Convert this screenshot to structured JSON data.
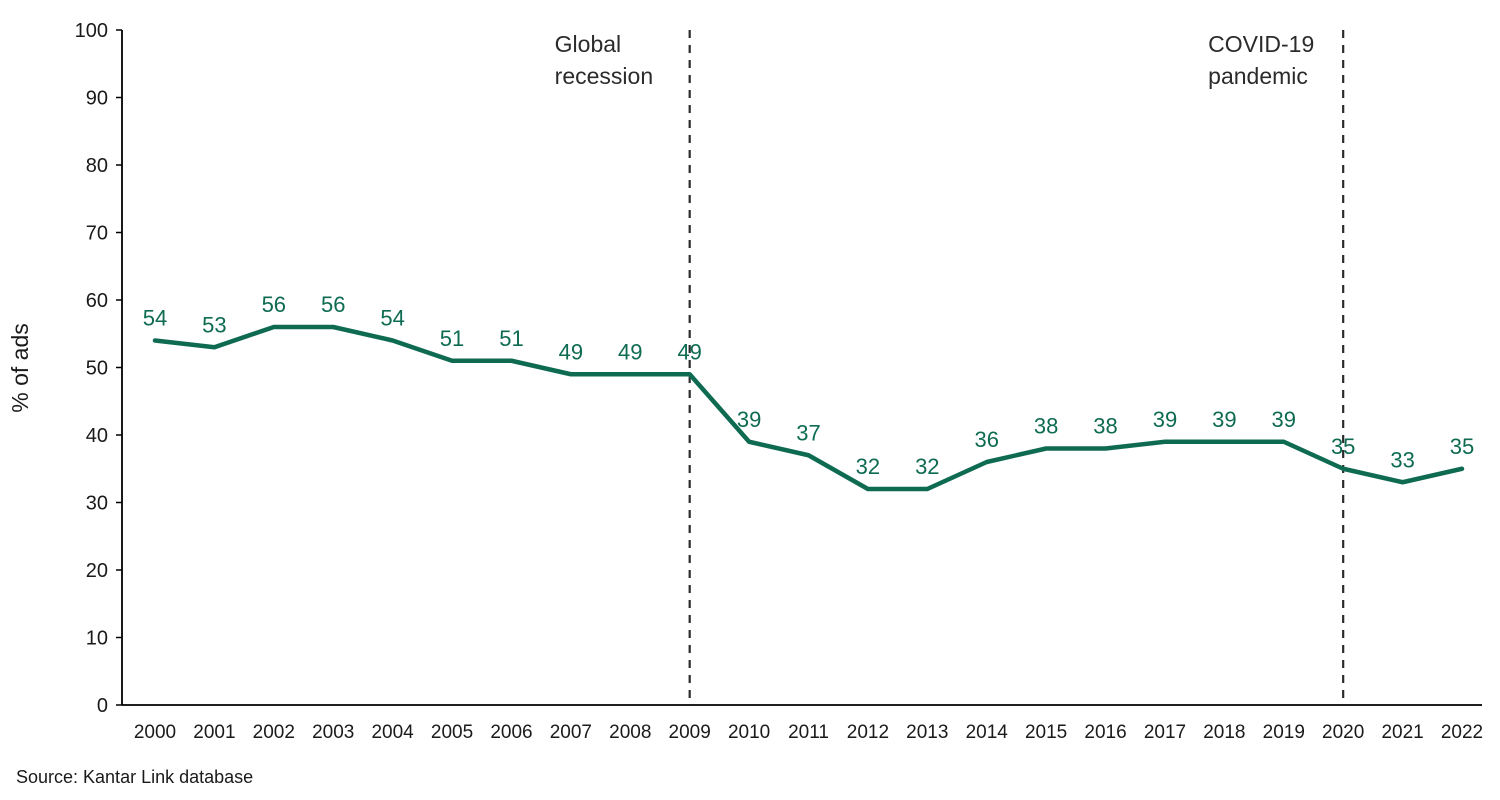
{
  "source": "Source: Kantar Link database",
  "chart_data": {
    "type": "line",
    "title": "",
    "xlabel": "",
    "ylabel": "% of ads",
    "ylim": [
      0,
      100
    ],
    "ytick_step": 10,
    "grid": false,
    "legend": "none",
    "line_color": "#0e6b52",
    "axis_color": "#000000",
    "annotation_line_color": "#2b2b2b",
    "categories": [
      "2000",
      "2001",
      "2002",
      "2003",
      "2004",
      "2005",
      "2006",
      "2007",
      "2008",
      "2009",
      "2010",
      "2011",
      "2012",
      "2013",
      "2014",
      "2015",
      "2016",
      "2017",
      "2018",
      "2019",
      "2020",
      "2021",
      "2022"
    ],
    "values": [
      54,
      53,
      56,
      56,
      54,
      51,
      51,
      49,
      49,
      49,
      39,
      37,
      32,
      32,
      36,
      38,
      38,
      39,
      39,
      39,
      35,
      33,
      35
    ],
    "annotations": [
      {
        "x": "2009",
        "lines": [
          "Global",
          "recession"
        ]
      },
      {
        "x": "2020",
        "lines": [
          "COVID-19",
          "pandemic"
        ]
      }
    ]
  }
}
